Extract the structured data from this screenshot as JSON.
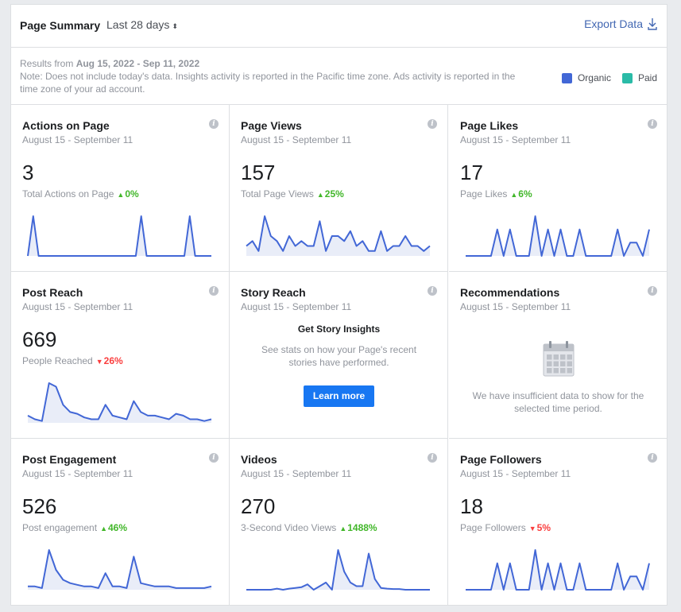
{
  "header": {
    "title": "Page Summary",
    "period": "Last 28 days",
    "period_sorter": "⬍",
    "export_label": "Export Data"
  },
  "info": {
    "results_prefix": "Results from ",
    "results_range": "Aug 15, 2022 - Sep 11, 2022",
    "note": "Note: Does not include today's data. Insights activity is reported in the Pacific time zone. Ads activity is reported in the time zone of your ad account."
  },
  "legend": [
    {
      "label": "Organic",
      "color": "#4267d6"
    },
    {
      "label": "Paid",
      "color": "#2abba7"
    }
  ],
  "colors": {
    "line": "#4267d6",
    "fill": "#e9edf8",
    "up": "#42b72a",
    "down": "#fa3e3e",
    "button": "#1877f2"
  },
  "cards": [
    {
      "title": "Actions on Page",
      "date": "August 15 - September 11",
      "value": "3",
      "label": "Total Actions on Page",
      "change": "0%",
      "direction": "up",
      "series": [
        0,
        3,
        0,
        0,
        0,
        0,
        0,
        0,
        0,
        0,
        0,
        0,
        0,
        0,
        0,
        0,
        0,
        0,
        0,
        0,
        0,
        3,
        0,
        0,
        0,
        0,
        0,
        0,
        0,
        0,
        3,
        0,
        0,
        0,
        0
      ]
    },
    {
      "title": "Page Views",
      "date": "August 15 - September 11",
      "value": "157",
      "label": "Total Page Views",
      "change": "25%",
      "direction": "up",
      "series": [
        2,
        3,
        1,
        8,
        4,
        3,
        1,
        4,
        2,
        3,
        2,
        2,
        7,
        1,
        4,
        4,
        3,
        5,
        2,
        3,
        1,
        1,
        5,
        1,
        2,
        2,
        4,
        2,
        2,
        1,
        2
      ]
    },
    {
      "title": "Page Likes",
      "date": "August 15 - September 11",
      "value": "17",
      "label": "Page Likes",
      "change": "6%",
      "direction": "up",
      "series": [
        0,
        0,
        0,
        0,
        0,
        1,
        0,
        1,
        0,
        0,
        0,
        1.5,
        0,
        1,
        0,
        1,
        0,
        0,
        1,
        0,
        0,
        0,
        0,
        0,
        1,
        0,
        0.5,
        0.5,
        0,
        1
      ]
    },
    {
      "title": "Post Reach",
      "date": "August 15 - September 11",
      "value": "669",
      "label": "People Reached",
      "change": "26%",
      "direction": "down",
      "series": [
        2,
        1,
        0.5,
        11,
        10,
        5,
        3,
        2.5,
        1.5,
        1,
        1,
        5,
        2,
        1.5,
        1,
        6,
        3,
        2,
        2,
        1.5,
        1,
        2.5,
        2,
        1,
        1,
        0.5,
        1
      ]
    },
    {
      "title": "Story Reach",
      "date": "August 15 - September 11",
      "empty": "story",
      "heading": "Get Story Insights",
      "text": "See stats on how your Page's recent stories have performed.",
      "button": "Learn more"
    },
    {
      "title": "Recommendations",
      "date": "August 15 - September 11",
      "empty": "recommendations",
      "text": "We have insufficient data to show for the selected time period."
    },
    {
      "title": "Post Engagement",
      "date": "August 15 - September 11",
      "value": "526",
      "label": "Post engagement",
      "change": "46%",
      "direction": "up",
      "series": [
        1,
        1,
        0.5,
        12,
        6,
        3,
        2,
        1.5,
        1,
        1,
        0.5,
        5,
        1,
        1,
        0.5,
        10,
        2,
        1.5,
        1,
        1,
        1,
        0.5,
        0.5,
        0.5,
        0.5,
        0.5,
        1
      ]
    },
    {
      "title": "Videos",
      "date": "August 15 - September 11",
      "value": "270",
      "label": "3-Second Video Views",
      "change": "1488%",
      "direction": "up",
      "series": [
        0,
        0,
        0,
        0,
        0,
        0.3,
        0,
        0.3,
        0.5,
        0.7,
        1.5,
        0,
        1,
        2,
        0,
        11,
        5,
        2,
        1,
        1,
        10,
        3,
        0.5,
        0.3,
        0.2,
        0.2,
        0,
        0,
        0,
        0,
        0
      ]
    },
    {
      "title": "Page Followers",
      "date": "August 15 - September 11",
      "value": "18",
      "label": "Page Followers",
      "change": "5%",
      "direction": "down",
      "series": [
        0,
        0,
        0,
        0,
        0,
        1,
        0,
        1,
        0,
        0,
        0,
        1.5,
        0,
        1,
        0,
        1,
        0,
        0,
        1,
        0,
        0,
        0,
        0,
        0,
        1,
        0,
        0.5,
        0.5,
        0,
        1
      ]
    }
  ]
}
